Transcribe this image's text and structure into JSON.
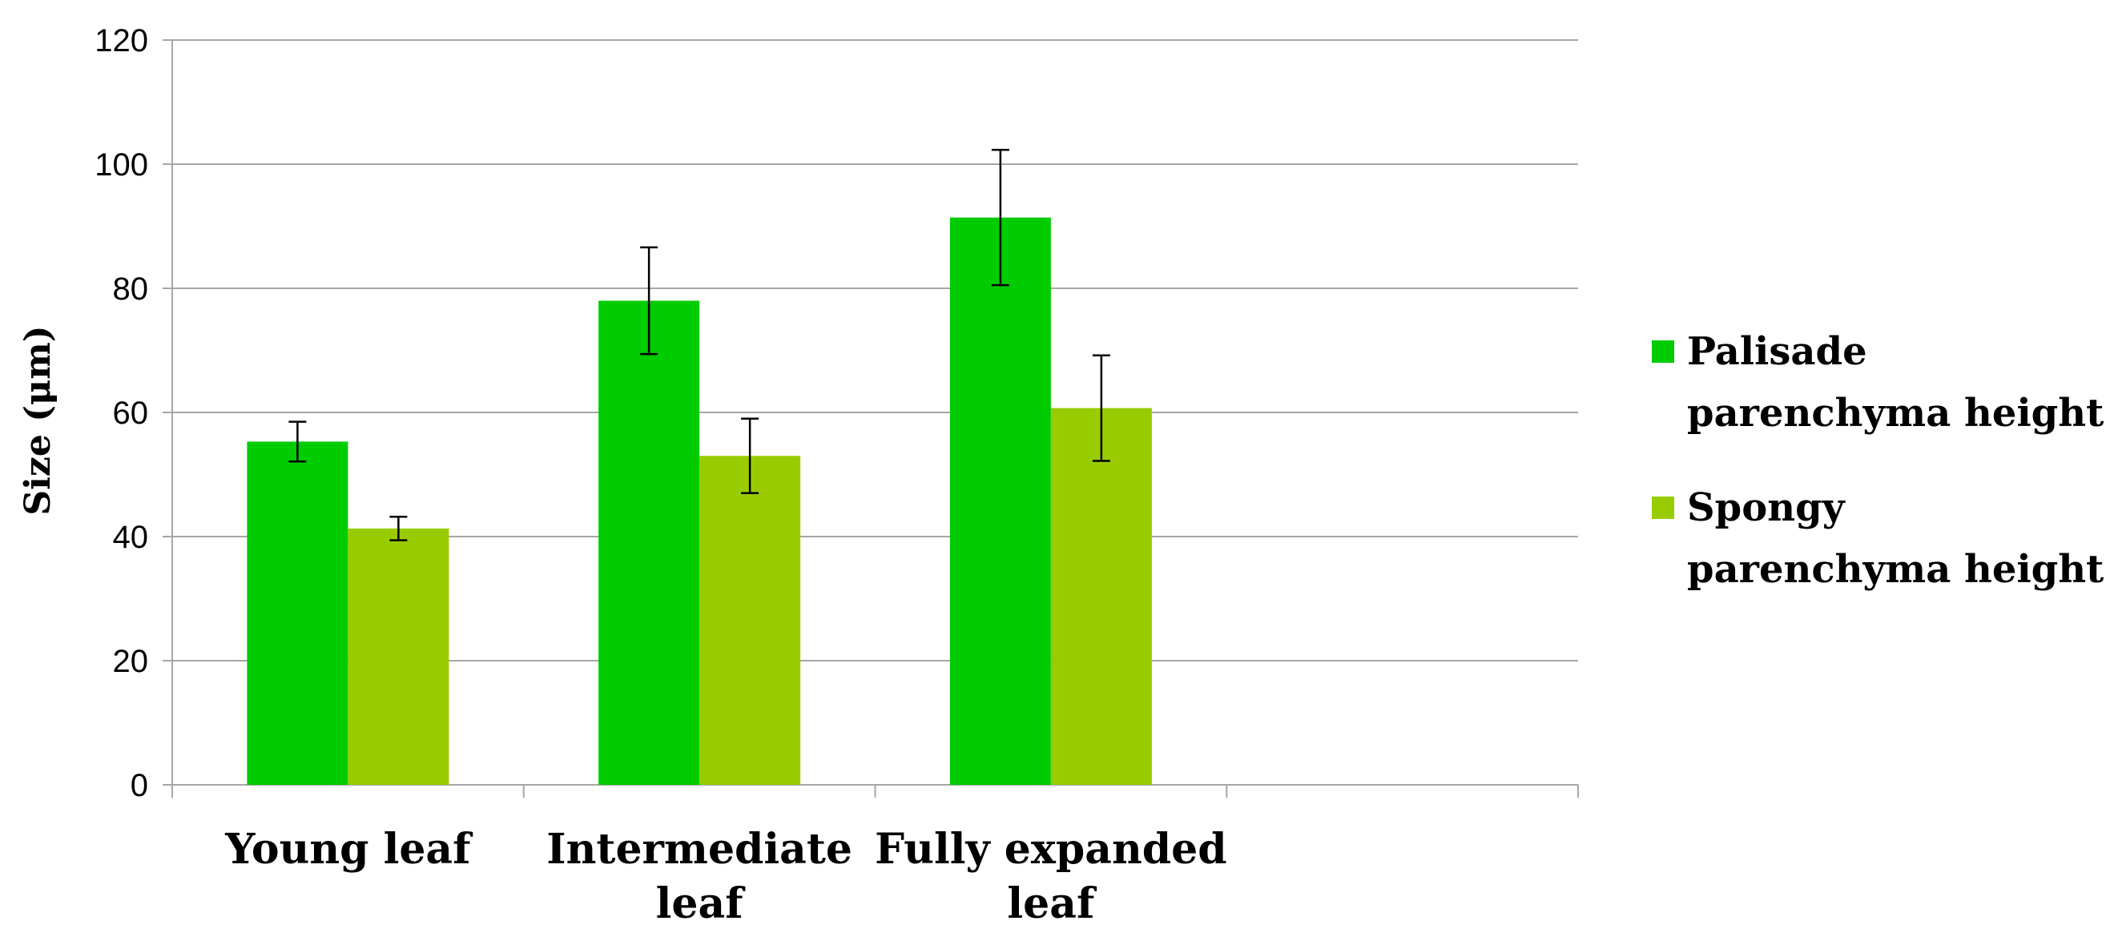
{
  "chart_data": {
    "type": "bar",
    "title": "",
    "xlabel": "",
    "ylabel": "Size (μm)",
    "ylim": [
      0,
      120
    ],
    "yticks": [
      "0",
      "20",
      "40",
      "60",
      "80",
      "100",
      "120"
    ],
    "grid": true,
    "legend_position": "right",
    "categories": [
      [
        "Young leaf"
      ],
      [
        "Intermediate",
        "leaf"
      ],
      [
        "Fully expanded",
        "leaf"
      ]
    ],
    "series": [
      {
        "name": [
          "Palisade",
          "parenchyma height"
        ],
        "color": "#00cc00",
        "values": [
          55.3,
          78.0,
          91.4
        ],
        "errors": [
          3.2,
          8.6,
          10.9
        ]
      },
      {
        "name": [
          "Spongy",
          "parenchyma height"
        ],
        "color": "#99cc00",
        "values": [
          41.3,
          53.0,
          60.7
        ],
        "errors": [
          1.9,
          6.0,
          8.5
        ]
      }
    ]
  }
}
